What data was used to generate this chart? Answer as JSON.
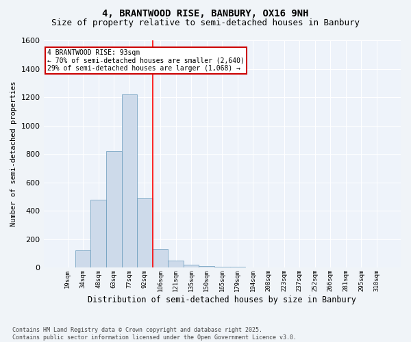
{
  "title": "4, BRANTWOOD RISE, BANBURY, OX16 9NH",
  "subtitle": "Size of property relative to semi-detached houses in Banbury",
  "xlabel": "Distribution of semi-detached houses by size in Banbury",
  "ylabel": "Number of semi-detached properties",
  "bin_labels": [
    "19sqm",
    "34sqm",
    "48sqm",
    "63sqm",
    "77sqm",
    "92sqm",
    "106sqm",
    "121sqm",
    "135sqm",
    "150sqm",
    "165sqm",
    "179sqm",
    "194sqm",
    "208sqm",
    "223sqm",
    "237sqm",
    "252sqm",
    "266sqm",
    "281sqm",
    "295sqm",
    "310sqm"
  ],
  "bar_values": [
    0,
    120,
    480,
    820,
    1220,
    490,
    130,
    50,
    20,
    10,
    5,
    5,
    0,
    0,
    0,
    0,
    0,
    0,
    0,
    0,
    0
  ],
  "bar_color": "#cddaea",
  "bar_edge_color": "#6699bb",
  "red_line_x": 5.5,
  "annotation_text": "4 BRANTWOOD RISE: 93sqm\n← 70% of semi-detached houses are smaller (2,640)\n29% of semi-detached houses are larger (1,068) →",
  "annotation_box_color": "#ffffff",
  "annotation_box_edge": "#cc0000",
  "ylim": [
    0,
    1600
  ],
  "yticks": [
    0,
    200,
    400,
    600,
    800,
    1000,
    1200,
    1400,
    1600
  ],
  "footer": "Contains HM Land Registry data © Crown copyright and database right 2025.\nContains public sector information licensed under the Open Government Licence v3.0.",
  "background_color": "#f0f4f8",
  "plot_bg_color": "#eef3fa",
  "title_fontsize": 10,
  "subtitle_fontsize": 9
}
